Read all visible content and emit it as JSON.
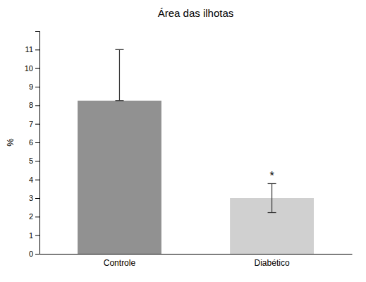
{
  "chart_data": {
    "type": "bar",
    "title": "Área das ilhotas",
    "ylabel": "%",
    "categories": [
      "Controle",
      "Diabético"
    ],
    "values": [
      8.25,
      3.0
    ],
    "errors_up": [
      2.75,
      0.78
    ],
    "errors_down": [
      0.0,
      0.78
    ],
    "colors": [
      "#919191",
      "#d0d0d0"
    ],
    "ylim": [
      0,
      12
    ],
    "yticks": [
      0,
      1,
      2,
      3,
      4,
      5,
      6,
      7,
      8,
      9,
      10,
      11
    ],
    "annotations": [
      {
        "text": "*",
        "category": "Diabético",
        "y": 4.0
      }
    ],
    "grid": false
  }
}
